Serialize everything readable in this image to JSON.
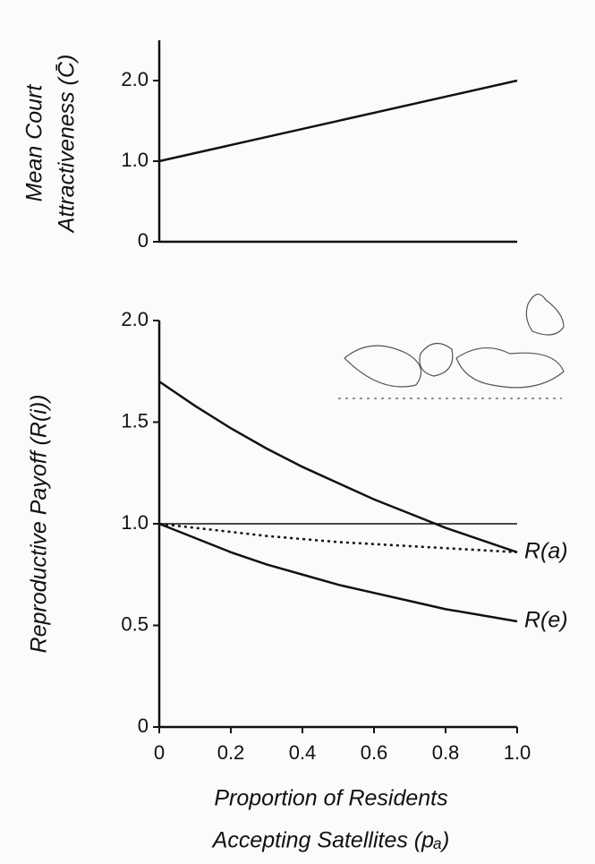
{
  "chart_data": [
    {
      "type": "line",
      "ylabel": [
        "Mean Court",
        "Attractiveness (C̄)"
      ],
      "x": [
        0,
        1
      ],
      "xlim": [
        0,
        1
      ],
      "ylim": [
        0,
        2.5
      ],
      "yticks": [
        0,
        {
          "value": 1,
          "label": "1.0"
        },
        {
          "value": 2,
          "label": "2.0"
        }
      ],
      "series": [
        {
          "color": "#111111",
          "style": "solid",
          "values": [
            1.0,
            2.0
          ]
        }
      ]
    },
    {
      "type": "line",
      "ylabel": [
        "Reproductive Payoff (R(i))"
      ],
      "xlabel": [
        "Proportion of Residents",
        "Accepting Satellites (pₐ)"
      ],
      "x": [
        0,
        0.1,
        0.2,
        0.3,
        0.4,
        0.5,
        0.6,
        0.7,
        0.8,
        0.9,
        1
      ],
      "xlim": [
        0,
        1
      ],
      "ylim": [
        0,
        2
      ],
      "xticks": [
        0,
        0.2,
        0.4,
        0.6,
        0.8,
        {
          "value": 1,
          "label": "1.0"
        }
      ],
      "yticks": [
        0,
        0.5,
        {
          "value": 1,
          "label": "1.0"
        },
        1.5,
        {
          "value": 2,
          "label": "2.0"
        }
      ],
      "series": [
        {
          "name": "R(a)",
          "color": "#111111",
          "style": "solid",
          "values": [
            1.7,
            1.58,
            1.47,
            1.37,
            1.28,
            1.2,
            1.12,
            1.05,
            0.98,
            0.92,
            0.86
          ]
        },
        {
          "color": "#111111",
          "style": "thin",
          "values": [
            1,
            1,
            1,
            1,
            1,
            1,
            1,
            1,
            1,
            1,
            1
          ]
        },
        {
          "color": "#111111",
          "style": "dotted",
          "values": [
            1.0,
            0.98,
            0.96,
            0.94,
            0.925,
            0.91,
            0.9,
            0.89,
            0.88,
            0.87,
            0.86
          ]
        },
        {
          "name": "R(e)",
          "color": "#111111",
          "style": "solid",
          "values": [
            1.0,
            0.93,
            0.86,
            0.8,
            0.75,
            0.7,
            0.66,
            0.62,
            0.58,
            0.55,
            0.52
          ]
        }
      ]
    }
  ]
}
